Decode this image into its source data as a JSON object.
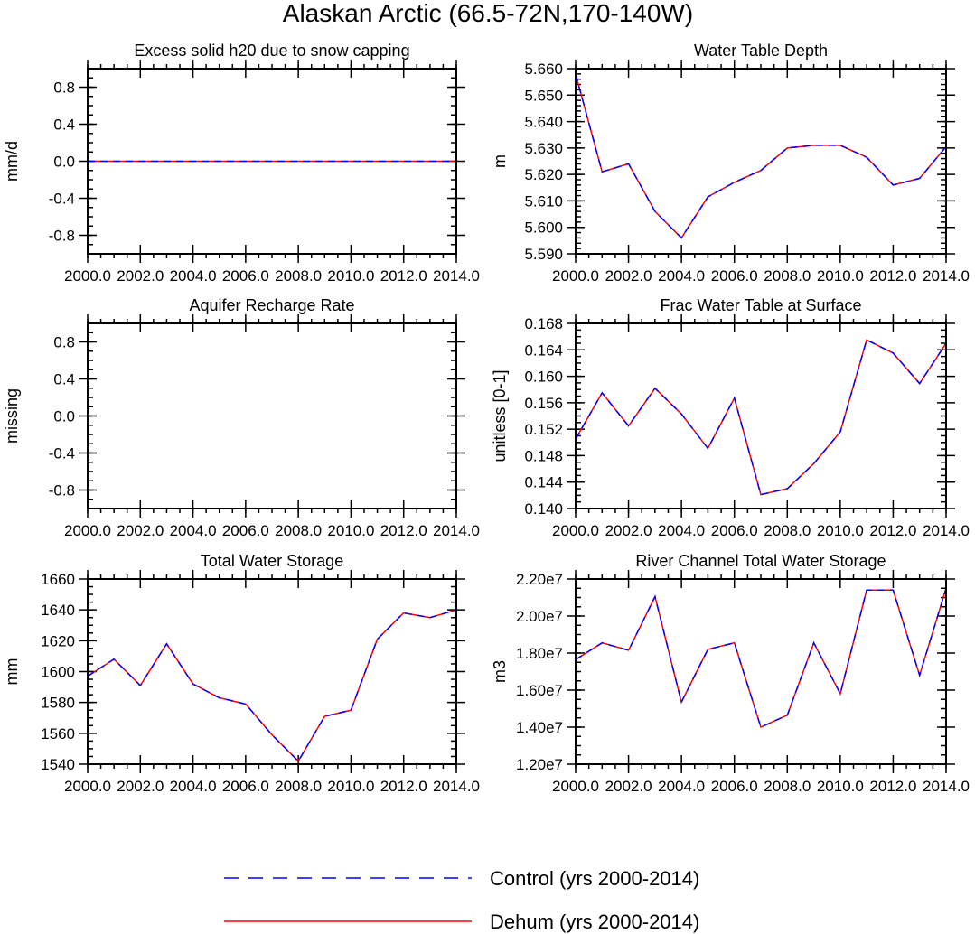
{
  "figure_title": "Alaskan Arctic (66.5-72N,170-140W)",
  "colors": {
    "control": "#0000ff",
    "dehum": "#ff0000"
  },
  "legend": [
    {
      "label": "Control (yrs 2000-2014)",
      "style": "dashed",
      "color": "#0000ff"
    },
    {
      "label": "Dehum (yrs 2000-2014)",
      "style": "solid",
      "color": "#ff0000"
    }
  ],
  "chart_data": [
    {
      "type": "line",
      "title": "Excess solid h20 due to snow capping",
      "ylabel": "mm/d",
      "xlim": [
        2000,
        2014
      ],
      "ylim": [
        -1.0,
        1.0
      ],
      "yticks": [
        -0.8,
        -0.4,
        0.0,
        0.4,
        0.8
      ],
      "ytick_labels": [
        "-0.8",
        "-0.4",
        "0.0",
        "0.4",
        "0.8"
      ],
      "yminor_step": 0.1,
      "xticks": [
        2000,
        2002,
        2004,
        2006,
        2008,
        2010,
        2012,
        2014
      ],
      "xtick_labels": [
        "2000.0",
        "2002.0",
        "2004.0",
        "2006.0",
        "2008.0",
        "2010.0",
        "2012.0",
        "2014.0"
      ],
      "x": [
        2000,
        2001,
        2002,
        2003,
        2004,
        2005,
        2006,
        2007,
        2008,
        2009,
        2010,
        2011,
        2012,
        2013,
        2014
      ],
      "series": [
        {
          "name": "Control (yrs 2000-2014)",
          "values": [
            0,
            0,
            0,
            0,
            0,
            0,
            0,
            0,
            0,
            0,
            0,
            0,
            0,
            0,
            0
          ]
        },
        {
          "name": "Dehum (yrs 2000-2014)",
          "values": [
            0,
            0,
            0,
            0,
            0,
            0,
            0,
            0,
            0,
            0,
            0,
            0,
            0,
            0,
            0
          ]
        }
      ]
    },
    {
      "type": "line",
      "title": "Water Table Depth",
      "ylabel": "m",
      "xlim": [
        2000,
        2014
      ],
      "ylim": [
        5.59,
        5.66
      ],
      "yticks": [
        5.59,
        5.6,
        5.61,
        5.62,
        5.63,
        5.64,
        5.65,
        5.66
      ],
      "ytick_labels": [
        "5.590",
        "5.600",
        "5.610",
        "5.620",
        "5.630",
        "5.640",
        "5.650",
        "5.660"
      ],
      "yminor_step": 0.002,
      "xticks": [
        2000,
        2002,
        2004,
        2006,
        2008,
        2010,
        2012,
        2014
      ],
      "xtick_labels": [
        "2000.0",
        "2002.0",
        "2004.0",
        "2006.0",
        "2008.0",
        "2010.0",
        "2012.0",
        "2014.0"
      ],
      "x": [
        2000,
        2001,
        2002,
        2003,
        2004,
        2005,
        2006,
        2007,
        2008,
        2009,
        2010,
        2011,
        2012,
        2013,
        2014
      ],
      "series": [
        {
          "name": "Control (yrs 2000-2014)",
          "values": [
            5.658,
            5.621,
            5.624,
            5.606,
            5.596,
            5.6115,
            5.617,
            5.6215,
            5.63,
            5.631,
            5.631,
            5.6265,
            5.616,
            5.6185,
            5.6305
          ]
        },
        {
          "name": "Dehum (yrs 2000-2014)",
          "values": [
            5.658,
            5.621,
            5.624,
            5.606,
            5.596,
            5.6115,
            5.617,
            5.6215,
            5.63,
            5.631,
            5.631,
            5.6265,
            5.616,
            5.6185,
            5.6305
          ]
        }
      ]
    },
    {
      "type": "line",
      "title": "Aquifer Recharge Rate",
      "ylabel": "missing",
      "xlim": [
        2000,
        2014
      ],
      "ylim": [
        -1.0,
        1.0
      ],
      "yticks": [
        -0.8,
        -0.4,
        0.0,
        0.4,
        0.8
      ],
      "ytick_labels": [
        "-0.8",
        "-0.4",
        "0.0",
        "0.4",
        "0.8"
      ],
      "yminor_step": 0.1,
      "xticks": [
        2000,
        2002,
        2004,
        2006,
        2008,
        2010,
        2012,
        2014
      ],
      "xtick_labels": [
        "2000.0",
        "2002.0",
        "2004.0",
        "2006.0",
        "2008.0",
        "2010.0",
        "2012.0",
        "2014.0"
      ],
      "x": [],
      "series": []
    },
    {
      "type": "line",
      "title": "Frac Water Table at Surface",
      "ylabel": "unitless [0-1]",
      "xlim": [
        2000,
        2014
      ],
      "ylim": [
        0.14,
        0.168
      ],
      "yticks": [
        0.14,
        0.144,
        0.148,
        0.152,
        0.156,
        0.16,
        0.164,
        0.168
      ],
      "ytick_labels": [
        "0.140",
        "0.144",
        "0.148",
        "0.152",
        "0.156",
        "0.160",
        "0.164",
        "0.168"
      ],
      "yminor_step": 0.001,
      "xticks": [
        2000,
        2002,
        2004,
        2006,
        2008,
        2010,
        2012,
        2014
      ],
      "xtick_labels": [
        "2000.0",
        "2002.0",
        "2004.0",
        "2006.0",
        "2008.0",
        "2010.0",
        "2012.0",
        "2014.0"
      ],
      "x": [
        2000,
        2001,
        2002,
        2003,
        2004,
        2005,
        2006,
        2007,
        2008,
        2009,
        2010,
        2011,
        2012,
        2013,
        2014
      ],
      "series": [
        {
          "name": "Control (yrs 2000-2014)",
          "values": [
            0.1505,
            0.1575,
            0.1525,
            0.1582,
            0.1543,
            0.1491,
            0.1567,
            0.1421,
            0.143,
            0.1468,
            0.1516,
            0.1655,
            0.1635,
            0.1589,
            0.165
          ]
        },
        {
          "name": "Dehum (yrs 2000-2014)",
          "values": [
            0.1505,
            0.1575,
            0.1525,
            0.1582,
            0.1543,
            0.1491,
            0.1567,
            0.1421,
            0.143,
            0.1468,
            0.1516,
            0.1655,
            0.1635,
            0.1589,
            0.165
          ]
        }
      ]
    },
    {
      "type": "line",
      "title": "Total Water Storage",
      "ylabel": "mm",
      "xlim": [
        2000,
        2014
      ],
      "ylim": [
        1540,
        1660
      ],
      "yticks": [
        1540,
        1560,
        1580,
        1600,
        1620,
        1640,
        1660
      ],
      "ytick_labels": [
        "1540",
        "1560",
        "1580",
        "1600",
        "1620",
        "1640",
        "1660"
      ],
      "yminor_step": 5,
      "xticks": [
        2000,
        2002,
        2004,
        2006,
        2008,
        2010,
        2012,
        2014
      ],
      "xtick_labels": [
        "2000.0",
        "2002.0",
        "2004.0",
        "2006.0",
        "2008.0",
        "2010.0",
        "2012.0",
        "2014.0"
      ],
      "x": [
        2000,
        2001,
        2002,
        2003,
        2004,
        2005,
        2006,
        2007,
        2008,
        2009,
        2010,
        2011,
        2012,
        2013,
        2014
      ],
      "series": [
        {
          "name": "Control (yrs 2000-2014)",
          "values": [
            1597,
            1608,
            1591,
            1618,
            1592,
            1583,
            1579,
            1559,
            1542,
            1571,
            1575,
            1621,
            1638,
            1635,
            1640
          ]
        },
        {
          "name": "Dehum (yrs 2000-2014)",
          "values": [
            1597,
            1608,
            1591,
            1618,
            1592,
            1583,
            1579,
            1559,
            1542,
            1571,
            1575,
            1621,
            1638,
            1635,
            1640
          ]
        }
      ]
    },
    {
      "type": "line",
      "title": "River Channel Total Water Storage",
      "ylabel": "m3",
      "xlim": [
        2000,
        2014
      ],
      "ylim": [
        12000000,
        22000000
      ],
      "yticks": [
        12000000,
        14000000,
        16000000,
        18000000,
        20000000,
        22000000
      ],
      "ytick_labels": [
        "1.20e7",
        "1.40e7",
        "1.60e7",
        "1.80e7",
        "2.00e7",
        "2.20e7"
      ],
      "yminor_step": 500000,
      "xticks": [
        2000,
        2002,
        2004,
        2006,
        2008,
        2010,
        2012,
        2014
      ],
      "xtick_labels": [
        "2000.0",
        "2002.0",
        "2004.0",
        "2006.0",
        "2008.0",
        "2010.0",
        "2012.0",
        "2014.0"
      ],
      "x": [
        2000,
        2001,
        2002,
        2003,
        2004,
        2005,
        2006,
        2007,
        2008,
        2009,
        2010,
        2011,
        2012,
        2013,
        2014
      ],
      "series": [
        {
          "name": "Control (yrs 2000-2014)",
          "values": [
            17650000,
            18550000,
            18150000,
            21050000,
            15350000,
            18200000,
            18550000,
            14000000,
            14650000,
            18550000,
            15800000,
            21400000,
            21400000,
            16800000,
            21500000
          ]
        },
        {
          "name": "Dehum (yrs 2000-2014)",
          "values": [
            17650000,
            18550000,
            18150000,
            21050000,
            15350000,
            18200000,
            18550000,
            14000000,
            14650000,
            18550000,
            15800000,
            21400000,
            21400000,
            16800000,
            21500000
          ]
        }
      ]
    }
  ]
}
